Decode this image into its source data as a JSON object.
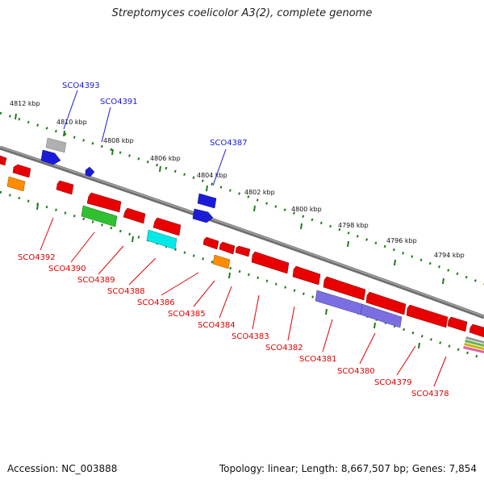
{
  "title": "Streptomyces coelicolor A3(2), complete genome",
  "footer": {
    "accession": "Accession: NC_003888",
    "topology": "Topology: linear; Length: 8,667,507 bp; Genes: 7,854"
  },
  "colors": {
    "forward_gene": "#1c1cd8",
    "reverse_gene": "#e80000",
    "backbone": "#8a8a8a",
    "tick": "#1f7a1f",
    "label_forward": "#1a1adc",
    "label_reverse": "#dd0000"
  },
  "kbp_ticks": [
    "4812 kbp",
    "4810 kbp",
    "4808 kbp",
    "4806 kbp",
    "4804 kbp",
    "4802 kbp",
    "4800 kbp",
    "4798 kbp",
    "4796 kbp",
    "4794 kbp"
  ],
  "forward_labels": [
    "SCO4393",
    "SCO4391",
    "SCO4387"
  ],
  "reverse_labels": [
    "SCO4392",
    "SCO4390",
    "SCO4389",
    "SCO4388",
    "SCO4386",
    "SCO4385",
    "SCO4384",
    "SCO4383",
    "SCO4382",
    "SCO4381",
    "SCO4380",
    "SCO4379",
    "SCO4378"
  ]
}
